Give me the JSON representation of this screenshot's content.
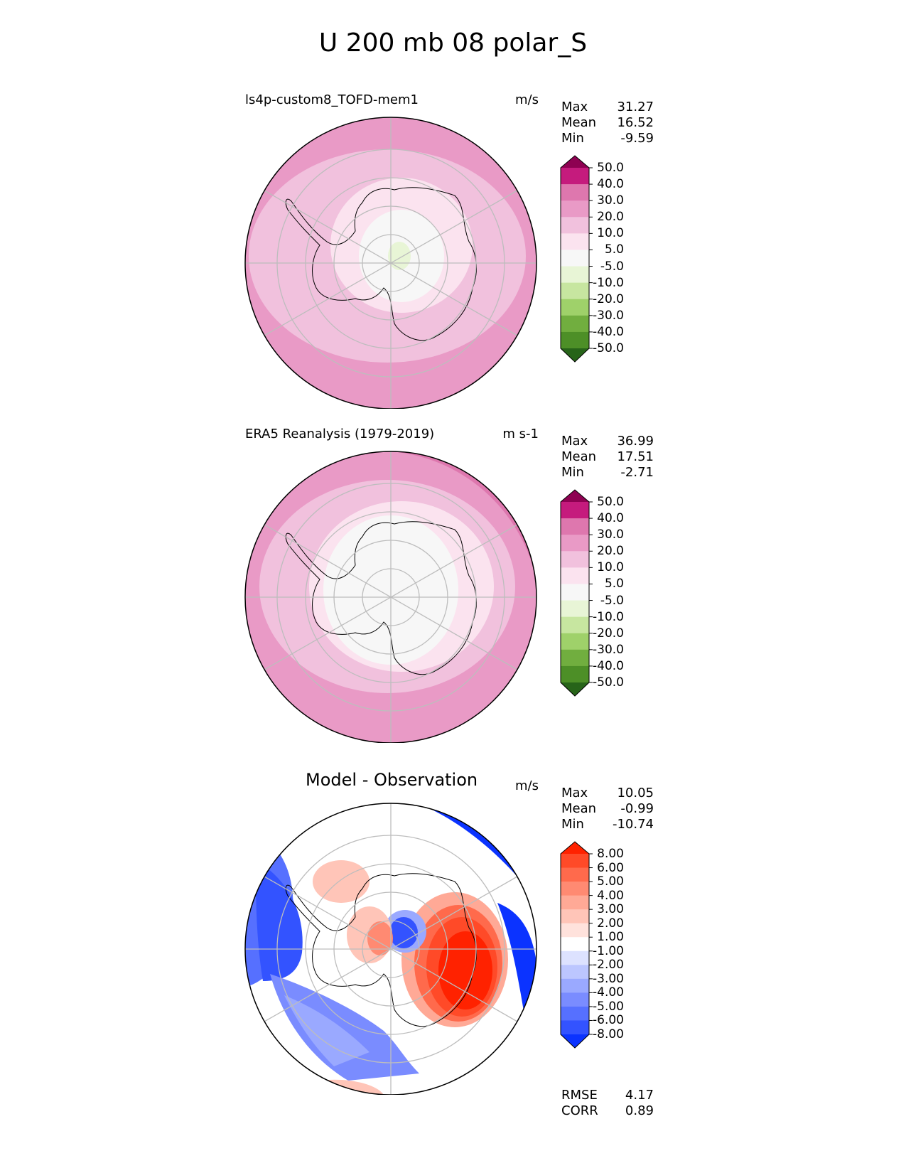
{
  "figure_title": "U 200 mb 08 polar_S",
  "chart_data": [
    {
      "type": "heatmap",
      "projection": "south-polar-stereographic",
      "title": "ls4p-custom8_TOFD-mem1",
      "units": "m/s",
      "stats": [
        {
          "label": "Max",
          "value": "31.27"
        },
        {
          "label": "Mean",
          "value": "16.52"
        },
        {
          "label": "Min",
          "value": "-9.59"
        }
      ],
      "colorbar_levels": [
        "50.0",
        "40.0",
        "30.0",
        "20.0",
        "10.0",
        "5.0",
        "-5.0",
        "-10.0",
        "-20.0",
        "-30.0",
        "-40.0",
        "-50.0"
      ],
      "colorbar_colors": [
        "#8e0152",
        "#c51b7d",
        "#de77ae",
        "#e99ac6",
        "#f1c1dd",
        "#fbe3ef",
        "#f7f7f7",
        "#e8f5d6",
        "#c7e6a0",
        "#9fd16a",
        "#71ae3f",
        "#4d8f27",
        "#276419"
      ]
    },
    {
      "type": "heatmap",
      "projection": "south-polar-stereographic",
      "title": "ERA5 Reanalysis (1979-2019)",
      "units": "m s-1",
      "stats": [
        {
          "label": "Max",
          "value": "36.99"
        },
        {
          "label": "Mean",
          "value": "17.51"
        },
        {
          "label": "Min",
          "value": "-2.71"
        }
      ],
      "colorbar_levels": [
        "50.0",
        "40.0",
        "30.0",
        "20.0",
        "10.0",
        "5.0",
        "-5.0",
        "-10.0",
        "-20.0",
        "-30.0",
        "-40.0",
        "-50.0"
      ],
      "colorbar_colors": [
        "#8e0152",
        "#c51b7d",
        "#de77ae",
        "#e99ac6",
        "#f1c1dd",
        "#fbe3ef",
        "#f7f7f7",
        "#e8f5d6",
        "#c7e6a0",
        "#9fd16a",
        "#71ae3f",
        "#4d8f27",
        "#276419"
      ]
    },
    {
      "type": "heatmap",
      "projection": "south-polar-stereographic",
      "title": "Model - Observation",
      "units": "m/s",
      "stats": [
        {
          "label": "Max",
          "value": "10.05"
        },
        {
          "label": "Mean",
          "value": "-0.99"
        },
        {
          "label": "Min",
          "value": "-10.74"
        }
      ],
      "colorbar_levels": [
        "8.00",
        "6.00",
        "5.00",
        "4.00",
        "3.00",
        "2.00",
        "1.00",
        "-1.00",
        "-2.00",
        "-3.00",
        "-4.00",
        "-5.00",
        "-6.00",
        "-8.00"
      ],
      "colorbar_colors": [
        "#ff2200",
        "#ff4a28",
        "#ff6a4c",
        "#ff8a72",
        "#ffa996",
        "#ffc5b8",
        "#ffe2dc",
        "#ffffff",
        "#dde2ff",
        "#bcc6ff",
        "#9aa9ff",
        "#7a8cff",
        "#5670ff",
        "#3353ff",
        "#0b33ff"
      ],
      "summary": [
        {
          "label": "RMSE",
          "value": "4.17"
        },
        {
          "label": "CORR",
          "value": "0.89"
        }
      ]
    }
  ]
}
